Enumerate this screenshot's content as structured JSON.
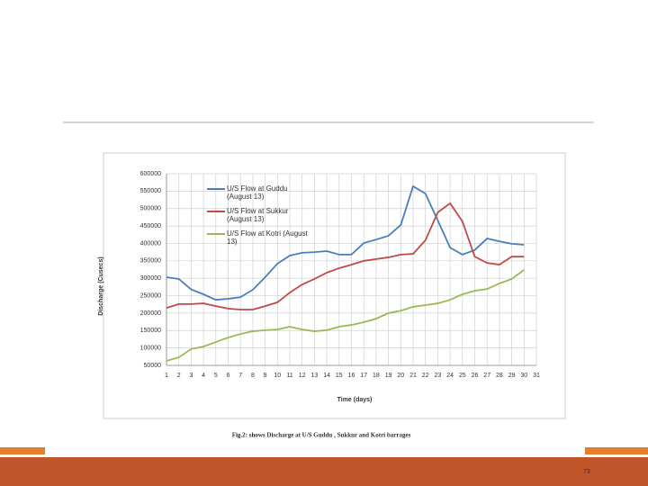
{
  "chart_data": {
    "type": "line",
    "y_label": "Discharge (Cusecs)",
    "x_label": "Time (days)",
    "categories": [
      "1",
      "2",
      "3",
      "4",
      "5",
      "6",
      "7",
      "8",
      "9",
      "10",
      "11",
      "12",
      "13",
      "14",
      "15",
      "16",
      "17",
      "18",
      "19",
      "20",
      "21",
      "22",
      "23",
      "24",
      "25",
      "26",
      "27",
      "28",
      "29",
      "30",
      "31"
    ],
    "series": [
      {
        "name": "U/S Flow at Guddu (August 13)",
        "color": "#4a7ebb",
        "values": [
          303000,
          298000,
          268000,
          254000,
          238000,
          241000,
          246000,
          267000,
          303000,
          342000,
          365000,
          373000,
          375000,
          378000,
          368000,
          368000,
          401000,
          411000,
          422000,
          453000,
          564000,
          543000,
          466000,
          388000,
          368000,
          381000,
          414000,
          406000,
          399000,
          396000,
          null
        ]
      },
      {
        "name": "U/S Flow at Sukkur (August 13)",
        "color": "#be4b48",
        "values": [
          215000,
          226000,
          226000,
          228000,
          220000,
          213000,
          210000,
          210000,
          220000,
          231000,
          259000,
          282000,
          298000,
          316000,
          329000,
          339000,
          350000,
          355000,
          360000,
          368000,
          370000,
          409000,
          489000,
          515000,
          463000,
          362000,
          344000,
          339000,
          362000,
          362000,
          null
        ]
      },
      {
        "name": "U/S Flow at Kotri (August 13)",
        "color": "#98b954",
        "values": [
          63000,
          73000,
          97000,
          104000,
          117000,
          130000,
          140000,
          148000,
          151000,
          153000,
          161000,
          153000,
          148000,
          151000,
          161000,
          166000,
          174000,
          184000,
          200000,
          207000,
          218000,
          223000,
          228000,
          238000,
          254000,
          264000,
          269000,
          285000,
          298000,
          324000,
          null
        ]
      }
    ],
    "ylim": [
      50000,
      600000
    ],
    "yticks": [
      50000,
      100000,
      150000,
      200000,
      250000,
      300000,
      350000,
      400000,
      450000,
      500000,
      550000,
      600000
    ],
    "grid": true
  },
  "caption": "Fig.2: shows Discharge at U/S Guddu , Sukkur and Kotri barrages",
  "page_number": "73"
}
